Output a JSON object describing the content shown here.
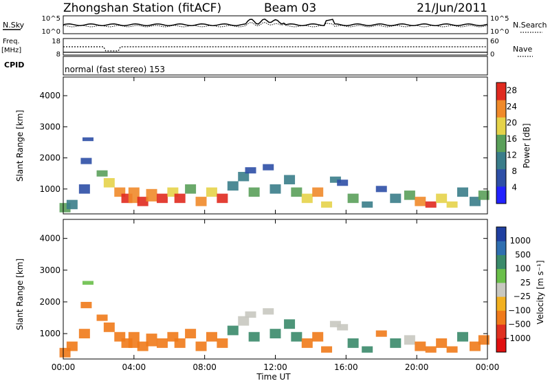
{
  "header": {
    "station": "Zhongshan Station (fitACF)",
    "beam": "Beam 03",
    "date": "21/Jun/2011"
  },
  "strip1": {
    "left_label": "N.Sky",
    "left_ticks": [
      "10^5",
      "10^0"
    ],
    "right_ticks": [
      "10^5",
      "10^0"
    ],
    "right_label": "N.Search"
  },
  "strip2": {
    "left_label_1": "Freq.",
    "left_label_2": "[MHz]",
    "left_ticks": [
      "18",
      "8"
    ],
    "right_ticks": [
      "60",
      "0"
    ],
    "right_label": "Nave"
  },
  "cpid": {
    "label": "CPID",
    "text": "normal (fast stereo) 153"
  },
  "axes": {
    "ylabel": "Slant Range [km]",
    "xlabel": "Time UT",
    "yticks": [
      "1000",
      "2000",
      "3000",
      "4000"
    ],
    "xticks": [
      "00:00",
      "04:00",
      "08:00",
      "12:00",
      "16:00",
      "20:00",
      "00:00"
    ]
  },
  "power_scale": {
    "label": "Power [dB]",
    "ticks": [
      "4",
      "8",
      "12",
      "16",
      "20",
      "24",
      "28"
    ],
    "colors": [
      "#2222ff",
      "#2e4fa6",
      "#3a7d8a",
      "#5aa05a",
      "#e5d34a",
      "#f08a2a",
      "#e02a1f"
    ]
  },
  "velocity_scale": {
    "label": "Velocity [m s⁻¹]",
    "ticks": [
      "1000",
      "500",
      "100",
      "25",
      "−25",
      "−100",
      "−500",
      "−1000"
    ],
    "colors": [
      "#1f3fa0",
      "#2f6fb0",
      "#3a8a6a",
      "#6abf4a",
      "#c8c8c0",
      "#f2b020",
      "#f07a1a",
      "#e03020",
      "#e01010"
    ]
  },
  "chart_data": [
    {
      "type": "heatmap",
      "title": "Power [dB]",
      "xlabel": "Time UT",
      "ylabel": "Slant Range [km]",
      "xlim": [
        0,
        24
      ],
      "ylim": [
        200,
        4600
      ],
      "colorbar_range": [
        0,
        30
      ],
      "cells": [
        [
          0.1,
          400,
          300,
          14
        ],
        [
          0.5,
          500,
          300,
          12
        ],
        [
          1.2,
          1000,
          300,
          8
        ],
        [
          1.4,
          2600,
          120,
          6
        ],
        [
          1.3,
          1900,
          200,
          8
        ],
        [
          2.2,
          1500,
          200,
          14
        ],
        [
          2.6,
          1200,
          300,
          18
        ],
        [
          3.2,
          900,
          300,
          22
        ],
        [
          3.6,
          700,
          300,
          26
        ],
        [
          4.0,
          800,
          500,
          24
        ],
        [
          4.5,
          600,
          300,
          28
        ],
        [
          5.0,
          800,
          400,
          22
        ],
        [
          5.6,
          700,
          300,
          26
        ],
        [
          6.2,
          900,
          300,
          18
        ],
        [
          6.6,
          700,
          300,
          28
        ],
        [
          7.2,
          1000,
          300,
          14
        ],
        [
          7.8,
          600,
          300,
          24
        ],
        [
          8.4,
          900,
          300,
          18
        ],
        [
          9.0,
          700,
          300,
          26
        ],
        [
          9.6,
          1100,
          300,
          12
        ],
        [
          10.2,
          1400,
          300,
          10
        ],
        [
          10.6,
          1600,
          200,
          8
        ],
        [
          10.8,
          900,
          300,
          14
        ],
        [
          11.6,
          1700,
          200,
          6
        ],
        [
          12.0,
          1000,
          300,
          10
        ],
        [
          12.8,
          1300,
          300,
          12
        ],
        [
          13.2,
          900,
          300,
          16
        ],
        [
          13.8,
          700,
          300,
          20
        ],
        [
          14.4,
          900,
          300,
          22
        ],
        [
          14.9,
          500,
          200,
          20
        ],
        [
          15.4,
          1300,
          200,
          10
        ],
        [
          15.8,
          1200,
          200,
          8
        ],
        [
          16.4,
          700,
          300,
          14
        ],
        [
          17.2,
          500,
          200,
          12
        ],
        [
          18.0,
          1000,
          200,
          8
        ],
        [
          18.8,
          700,
          300,
          12
        ],
        [
          19.6,
          800,
          300,
          14
        ],
        [
          20.2,
          600,
          300,
          22
        ],
        [
          20.8,
          500,
          200,
          26
        ],
        [
          21.4,
          700,
          300,
          18
        ],
        [
          22.0,
          500,
          200,
          20
        ],
        [
          22.6,
          900,
          300,
          10
        ],
        [
          23.3,
          600,
          300,
          12
        ],
        [
          23.8,
          800,
          300,
          16
        ]
      ]
    },
    {
      "type": "heatmap",
      "title": "Velocity [m s⁻¹]",
      "xlabel": "Time UT",
      "ylabel": "Slant Range [km]",
      "xlim": [
        0,
        24
      ],
      "ylim": [
        200,
        4600
      ],
      "colorbar_range": [
        -1000,
        1000
      ],
      "cells": [
        [
          0.1,
          400,
          300,
          -300
        ],
        [
          0.5,
          600,
          300,
          -200
        ],
        [
          1.2,
          1000,
          300,
          -150
        ],
        [
          1.4,
          2600,
          120,
          60
        ],
        [
          1.3,
          1900,
          200,
          -200
        ],
        [
          2.2,
          1500,
          200,
          -400
        ],
        [
          2.6,
          1200,
          300,
          -300
        ],
        [
          3.2,
          900,
          300,
          -300
        ],
        [
          3.6,
          700,
          300,
          -250
        ],
        [
          4.0,
          800,
          500,
          -300
        ],
        [
          4.5,
          600,
          300,
          -200
        ],
        [
          5.0,
          800,
          400,
          -250
        ],
        [
          5.6,
          700,
          300,
          -300
        ],
        [
          6.2,
          900,
          300,
          -200
        ],
        [
          6.6,
          700,
          300,
          -250
        ],
        [
          7.2,
          1000,
          300,
          -150
        ],
        [
          7.8,
          600,
          300,
          -250
        ],
        [
          8.4,
          900,
          300,
          -200
        ],
        [
          9.0,
          700,
          300,
          -300
        ],
        [
          9.6,
          1100,
          300,
          200
        ],
        [
          10.2,
          1400,
          300,
          0
        ],
        [
          10.6,
          1600,
          200,
          0
        ],
        [
          10.8,
          900,
          300,
          100
        ],
        [
          11.6,
          1700,
          200,
          0
        ],
        [
          12.0,
          1000,
          300,
          200
        ],
        [
          12.8,
          1300,
          300,
          300
        ],
        [
          13.2,
          900,
          300,
          150
        ],
        [
          13.8,
          700,
          300,
          -250
        ],
        [
          14.4,
          900,
          300,
          -300
        ],
        [
          14.9,
          500,
          200,
          -200
        ],
        [
          15.4,
          1300,
          200,
          0
        ],
        [
          15.8,
          1200,
          200,
          0
        ],
        [
          16.4,
          700,
          300,
          150
        ],
        [
          17.2,
          500,
          200,
          200
        ],
        [
          18.0,
          1000,
          200,
          -120
        ],
        [
          18.8,
          700,
          300,
          200
        ],
        [
          19.6,
          800,
          300,
          0
        ],
        [
          20.2,
          600,
          300,
          -200
        ],
        [
          20.8,
          500,
          200,
          -300
        ],
        [
          21.4,
          700,
          300,
          -250
        ],
        [
          22.0,
          500,
          200,
          -200
        ],
        [
          22.6,
          900,
          300,
          150
        ],
        [
          23.3,
          600,
          300,
          -250
        ],
        [
          23.8,
          800,
          300,
          -300
        ]
      ]
    }
  ]
}
